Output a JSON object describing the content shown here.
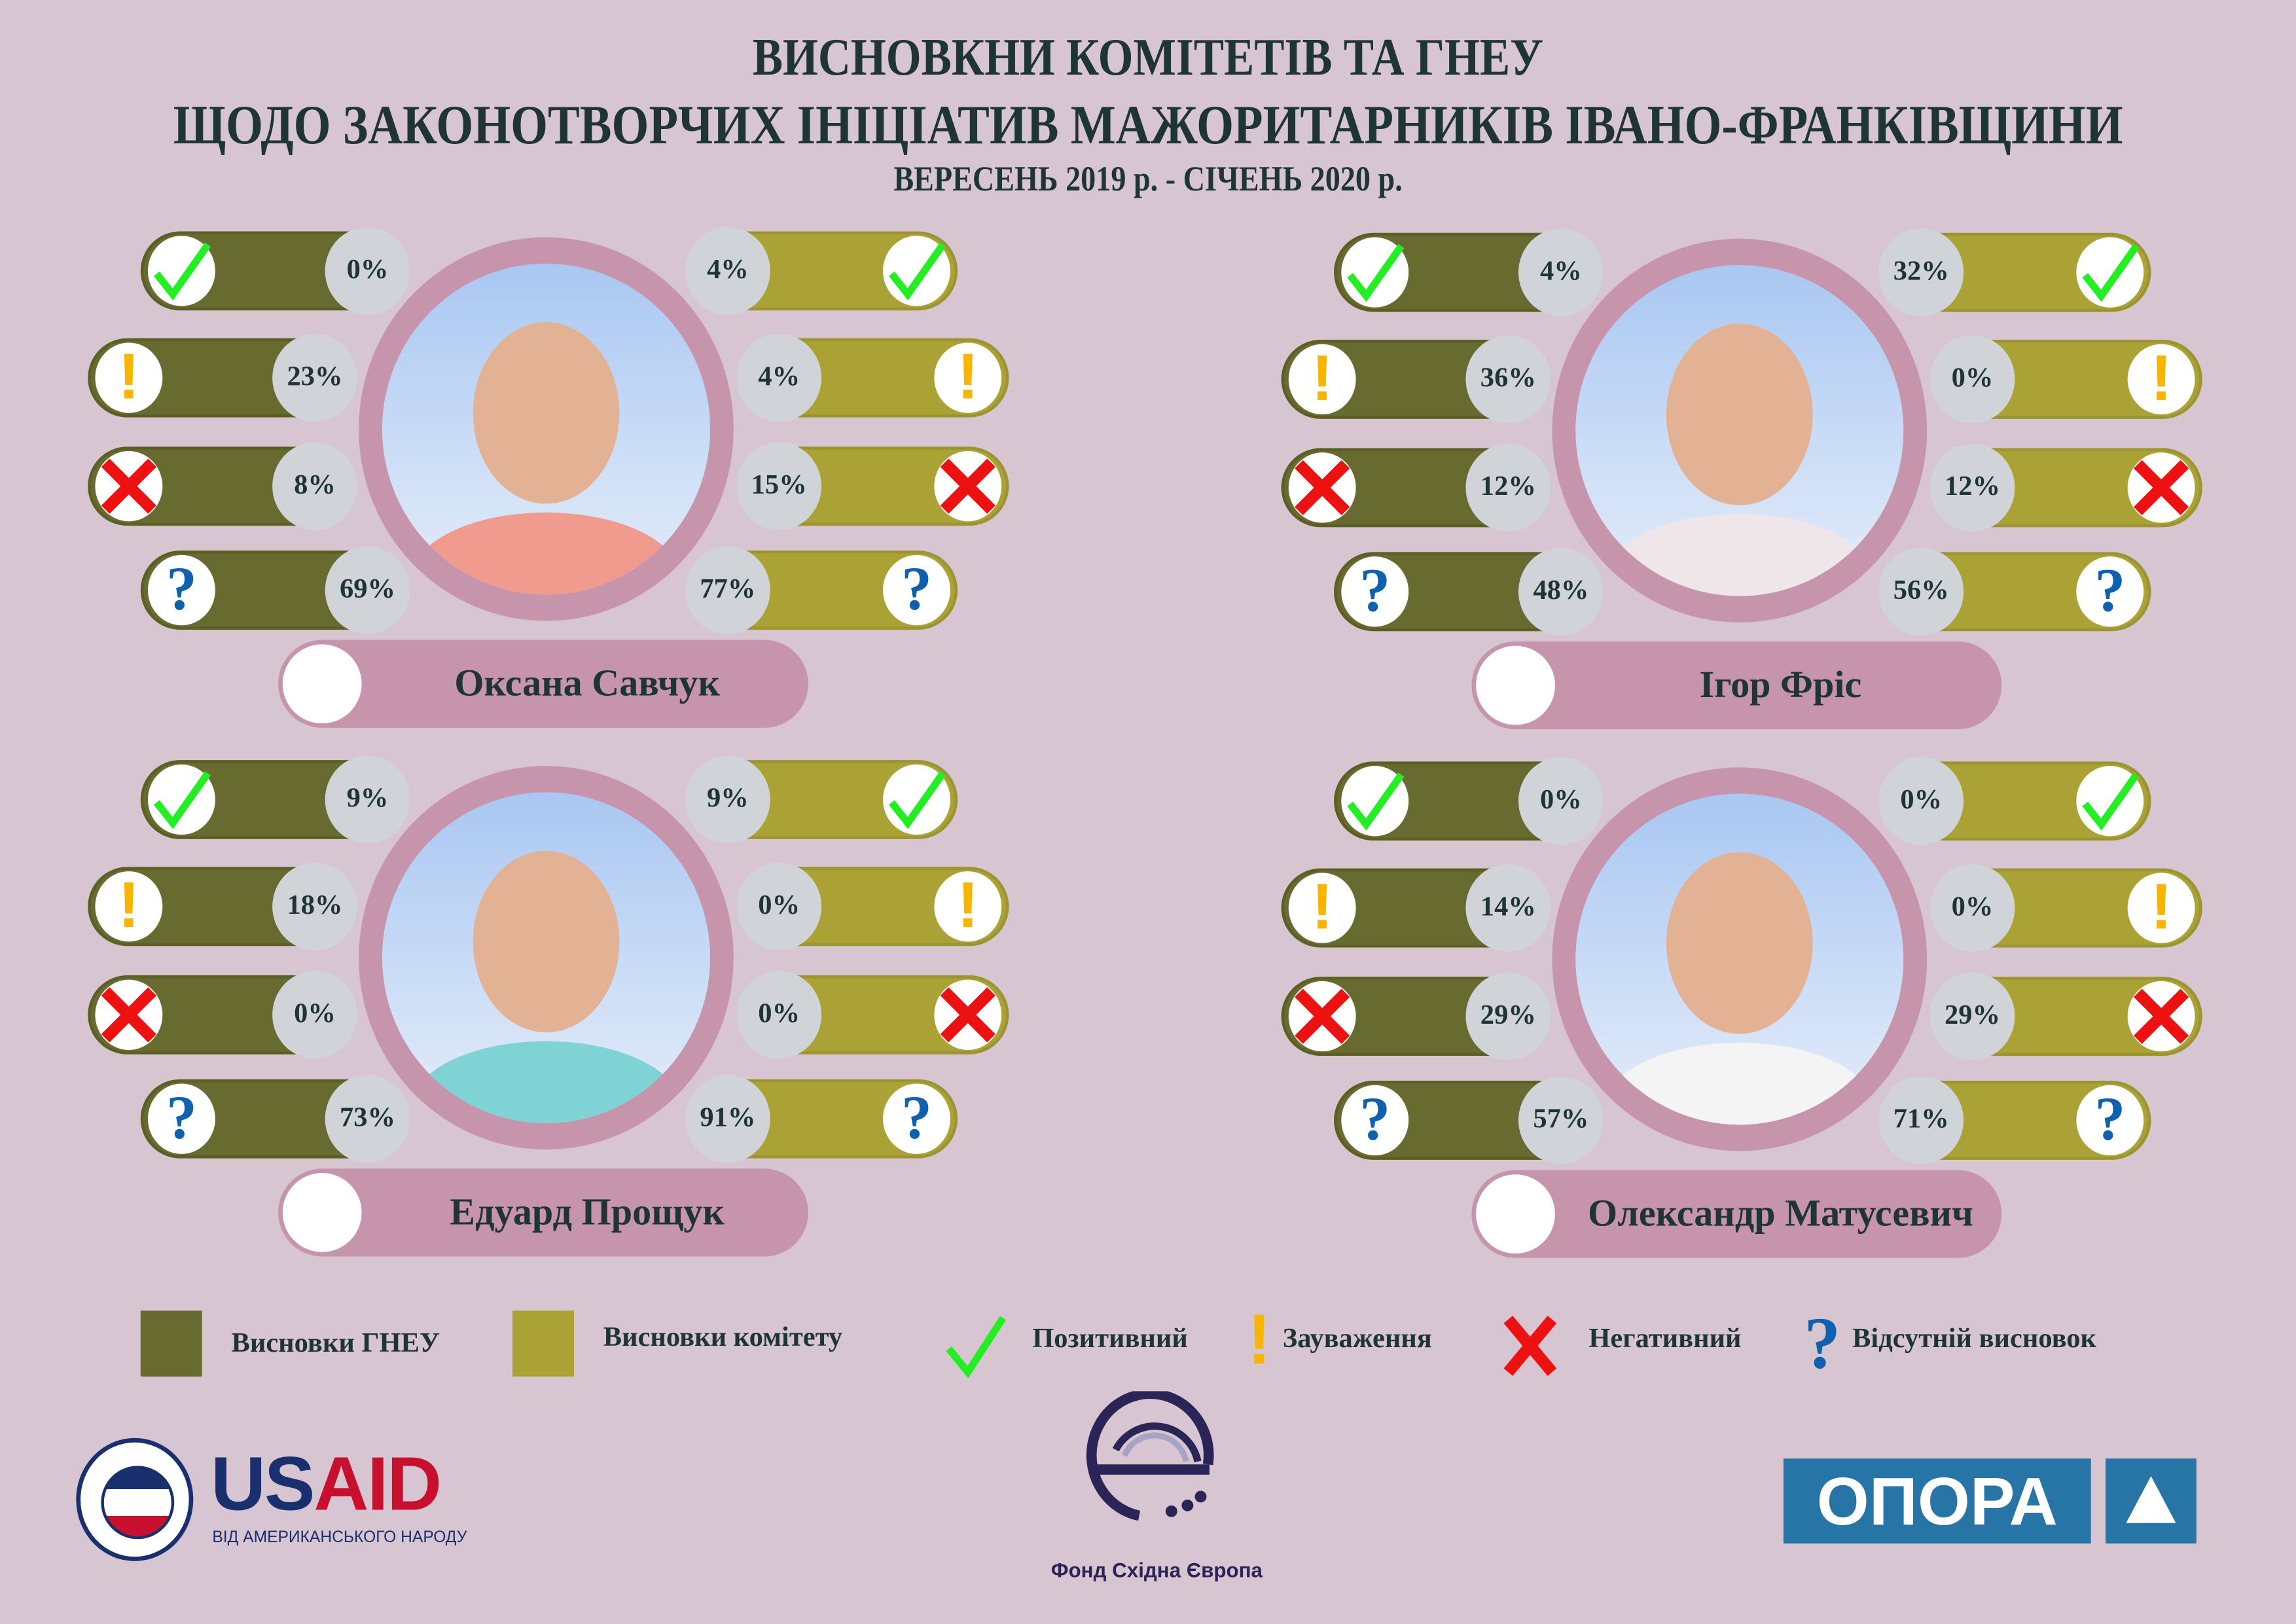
{
  "title": {
    "line1": "ВИСНОВКНИ КОМІТЕТІВ ТА ГНЕУ",
    "line2": "ЩОДО ЗАКОНОТВОРЧИХ ІНІЦІАТИВ МАЖОРИТАРНИКІВ ІВАНО-ФРАНКІВЩИНИ",
    "period": "ВЕРЕСЕНЬ 2019 р. -   СІЧЕНЬ 2020 р."
  },
  "categories": [
    "positive",
    "remarks",
    "negative",
    "missing"
  ],
  "colors": {
    "gneu": "#676b30",
    "committee": "#aba235",
    "positive": "#22ee22",
    "remarks": "#f7b500",
    "negative": "#ee1111",
    "missing": "#1060b0",
    "background": "#d7c5d1",
    "accent": "#c795ab"
  },
  "panels": [
    {
      "name": "Оксана Савчук",
      "gneu": [
        "0%",
        "23%",
        "8%",
        "69%"
      ],
      "committee": [
        "4%",
        "4%",
        "15%",
        "77%"
      ]
    },
    {
      "name": "Ігор Фріс",
      "gneu": [
        "4%",
        "36%",
        "12%",
        "48%"
      ],
      "committee": [
        "32%",
        "0%",
        "12%",
        "56%"
      ]
    },
    {
      "name": "Едуард Прощук",
      "gneu": [
        "9%",
        "18%",
        "0%",
        "73%"
      ],
      "committee": [
        "9%",
        "0%",
        "0%",
        "91%"
      ]
    },
    {
      "name": "Олександр Матусевич",
      "gneu": [
        "0%",
        "14%",
        "29%",
        "57%"
      ],
      "committee": [
        "0%",
        "0%",
        "29%",
        "71%"
      ]
    }
  ],
  "legend": {
    "gneu": "Висновки ГНЕУ",
    "committee": "Висновки комітету",
    "positive": "Позитивний",
    "remarks": "Зауваження",
    "negative": "Негативний",
    "missing": "Відсутній висновок"
  },
  "logos": {
    "usaid": "USAID",
    "usaid_tagline": "ВІД АМЕРИКАНСЬКОГО НАРОДУ",
    "usaid_seal": "UNITED STATES AGENCY INTERNATIONAL DEVELOPMENT",
    "fond": "Фонд Східна Європа",
    "opora": "ОПОРА"
  }
}
